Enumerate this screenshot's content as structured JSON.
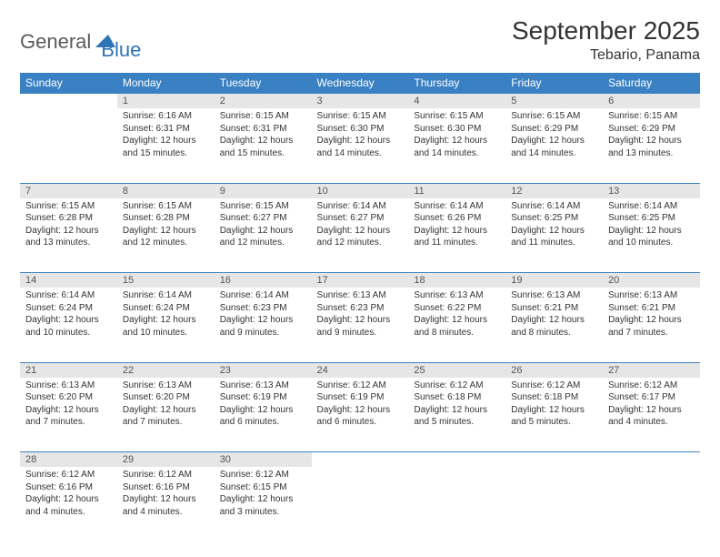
{
  "brand": {
    "part1": "General",
    "part2": "Blue",
    "color1": "#5a5a5a",
    "color2": "#2e74b5"
  },
  "title": "September 2025",
  "location": "Tebario, Panama",
  "colors": {
    "header_bg": "#3a81c4",
    "header_text": "#ffffff",
    "daynum_bg": "#e6e6e6",
    "row_border": "#3a81c4",
    "text": "#333333"
  },
  "days_of_week": [
    "Sunday",
    "Monday",
    "Tuesday",
    "Wednesday",
    "Thursday",
    "Friday",
    "Saturday"
  ],
  "start_offset": 1,
  "days": [
    {
      "n": 1,
      "sunrise": "6:16 AM",
      "sunset": "6:31 PM",
      "daylight": "12 hours and 15 minutes."
    },
    {
      "n": 2,
      "sunrise": "6:15 AM",
      "sunset": "6:31 PM",
      "daylight": "12 hours and 15 minutes."
    },
    {
      "n": 3,
      "sunrise": "6:15 AM",
      "sunset": "6:30 PM",
      "daylight": "12 hours and 14 minutes."
    },
    {
      "n": 4,
      "sunrise": "6:15 AM",
      "sunset": "6:30 PM",
      "daylight": "12 hours and 14 minutes."
    },
    {
      "n": 5,
      "sunrise": "6:15 AM",
      "sunset": "6:29 PM",
      "daylight": "12 hours and 14 minutes."
    },
    {
      "n": 6,
      "sunrise": "6:15 AM",
      "sunset": "6:29 PM",
      "daylight": "12 hours and 13 minutes."
    },
    {
      "n": 7,
      "sunrise": "6:15 AM",
      "sunset": "6:28 PM",
      "daylight": "12 hours and 13 minutes."
    },
    {
      "n": 8,
      "sunrise": "6:15 AM",
      "sunset": "6:28 PM",
      "daylight": "12 hours and 12 minutes."
    },
    {
      "n": 9,
      "sunrise": "6:15 AM",
      "sunset": "6:27 PM",
      "daylight": "12 hours and 12 minutes."
    },
    {
      "n": 10,
      "sunrise": "6:14 AM",
      "sunset": "6:27 PM",
      "daylight": "12 hours and 12 minutes."
    },
    {
      "n": 11,
      "sunrise": "6:14 AM",
      "sunset": "6:26 PM",
      "daylight": "12 hours and 11 minutes."
    },
    {
      "n": 12,
      "sunrise": "6:14 AM",
      "sunset": "6:25 PM",
      "daylight": "12 hours and 11 minutes."
    },
    {
      "n": 13,
      "sunrise": "6:14 AM",
      "sunset": "6:25 PM",
      "daylight": "12 hours and 10 minutes."
    },
    {
      "n": 14,
      "sunrise": "6:14 AM",
      "sunset": "6:24 PM",
      "daylight": "12 hours and 10 minutes."
    },
    {
      "n": 15,
      "sunrise": "6:14 AM",
      "sunset": "6:24 PM",
      "daylight": "12 hours and 10 minutes."
    },
    {
      "n": 16,
      "sunrise": "6:14 AM",
      "sunset": "6:23 PM",
      "daylight": "12 hours and 9 minutes."
    },
    {
      "n": 17,
      "sunrise": "6:13 AM",
      "sunset": "6:23 PM",
      "daylight": "12 hours and 9 minutes."
    },
    {
      "n": 18,
      "sunrise": "6:13 AM",
      "sunset": "6:22 PM",
      "daylight": "12 hours and 8 minutes."
    },
    {
      "n": 19,
      "sunrise": "6:13 AM",
      "sunset": "6:21 PM",
      "daylight": "12 hours and 8 minutes."
    },
    {
      "n": 20,
      "sunrise": "6:13 AM",
      "sunset": "6:21 PM",
      "daylight": "12 hours and 7 minutes."
    },
    {
      "n": 21,
      "sunrise": "6:13 AM",
      "sunset": "6:20 PM",
      "daylight": "12 hours and 7 minutes."
    },
    {
      "n": 22,
      "sunrise": "6:13 AM",
      "sunset": "6:20 PM",
      "daylight": "12 hours and 7 minutes."
    },
    {
      "n": 23,
      "sunrise": "6:13 AM",
      "sunset": "6:19 PM",
      "daylight": "12 hours and 6 minutes."
    },
    {
      "n": 24,
      "sunrise": "6:12 AM",
      "sunset": "6:19 PM",
      "daylight": "12 hours and 6 minutes."
    },
    {
      "n": 25,
      "sunrise": "6:12 AM",
      "sunset": "6:18 PM",
      "daylight": "12 hours and 5 minutes."
    },
    {
      "n": 26,
      "sunrise": "6:12 AM",
      "sunset": "6:18 PM",
      "daylight": "12 hours and 5 minutes."
    },
    {
      "n": 27,
      "sunrise": "6:12 AM",
      "sunset": "6:17 PM",
      "daylight": "12 hours and 4 minutes."
    },
    {
      "n": 28,
      "sunrise": "6:12 AM",
      "sunset": "6:16 PM",
      "daylight": "12 hours and 4 minutes."
    },
    {
      "n": 29,
      "sunrise": "6:12 AM",
      "sunset": "6:16 PM",
      "daylight": "12 hours and 4 minutes."
    },
    {
      "n": 30,
      "sunrise": "6:12 AM",
      "sunset": "6:15 PM",
      "daylight": "12 hours and 3 minutes."
    }
  ]
}
